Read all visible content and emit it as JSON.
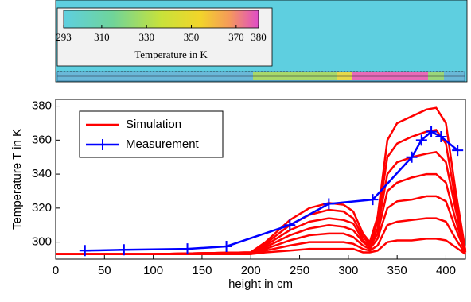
{
  "colorbar": {
    "ticks": [
      293,
      310,
      330,
      350,
      370,
      380
    ],
    "lim": [
      293,
      380
    ],
    "label": "Temperature in K"
  },
  "chart_data": {
    "type": "line",
    "xlabel": "height in cm",
    "ylabel": "Temperature T in K",
    "xlim": [
      0,
      420
    ],
    "ylim": [
      290,
      384
    ],
    "xticks": [
      0,
      50,
      100,
      150,
      200,
      250,
      300,
      350,
      400
    ],
    "yticks": [
      300,
      320,
      340,
      360,
      380
    ],
    "legend": "upper left",
    "series": [
      {
        "name": "Simulation",
        "color": "#ff0000",
        "x": [
          0,
          100,
          200,
          215,
          240,
          260,
          280,
          295,
          305,
          315,
          322,
          330,
          340,
          350,
          365,
          380,
          390,
          400,
          410,
          420
        ],
        "values": [
          [
            293,
            293,
            294,
            300,
            313,
            320,
            323,
            322,
            318,
            305,
            300,
            315,
            360,
            370,
            374,
            378,
            379,
            370,
            330,
            295
          ],
          [
            293,
            293,
            294,
            299,
            310,
            316,
            319,
            318,
            314,
            303,
            299,
            312,
            350,
            358,
            362,
            365,
            366,
            358,
            324,
            295
          ],
          [
            293,
            293,
            294,
            298,
            307,
            312,
            314,
            313,
            311,
            301,
            298,
            308,
            340,
            347,
            350,
            352,
            353,
            347,
            319,
            294
          ],
          [
            293,
            293,
            294,
            297,
            304,
            308,
            310,
            309,
            307,
            300,
            297,
            305,
            330,
            335,
            338,
            340,
            340,
            335,
            313,
            294
          ],
          [
            293,
            293,
            293,
            296,
            301,
            304,
            305,
            305,
            303,
            298,
            296,
            302,
            320,
            324,
            325,
            327,
            327,
            324,
            308,
            294
          ],
          [
            293,
            293,
            293,
            295,
            298,
            300,
            300,
            300,
            299,
            296,
            295,
            298,
            310,
            312,
            313,
            314,
            314,
            312,
            302,
            293
          ],
          [
            293,
            293,
            293,
            294,
            295,
            296,
            296,
            296,
            296,
            294,
            294,
            295,
            300,
            301,
            301,
            302,
            302,
            301,
            297,
            293
          ]
        ]
      },
      {
        "name": "Measurement",
        "color": "#0000ff",
        "x": [
          30,
          70,
          135,
          175,
          240,
          280,
          325,
          365,
          375,
          385,
          395,
          412
        ],
        "values": [
          295,
          295.5,
          296,
          297.5,
          310,
          322.5,
          325,
          350,
          360,
          365,
          362,
          354
        ]
      }
    ]
  }
}
